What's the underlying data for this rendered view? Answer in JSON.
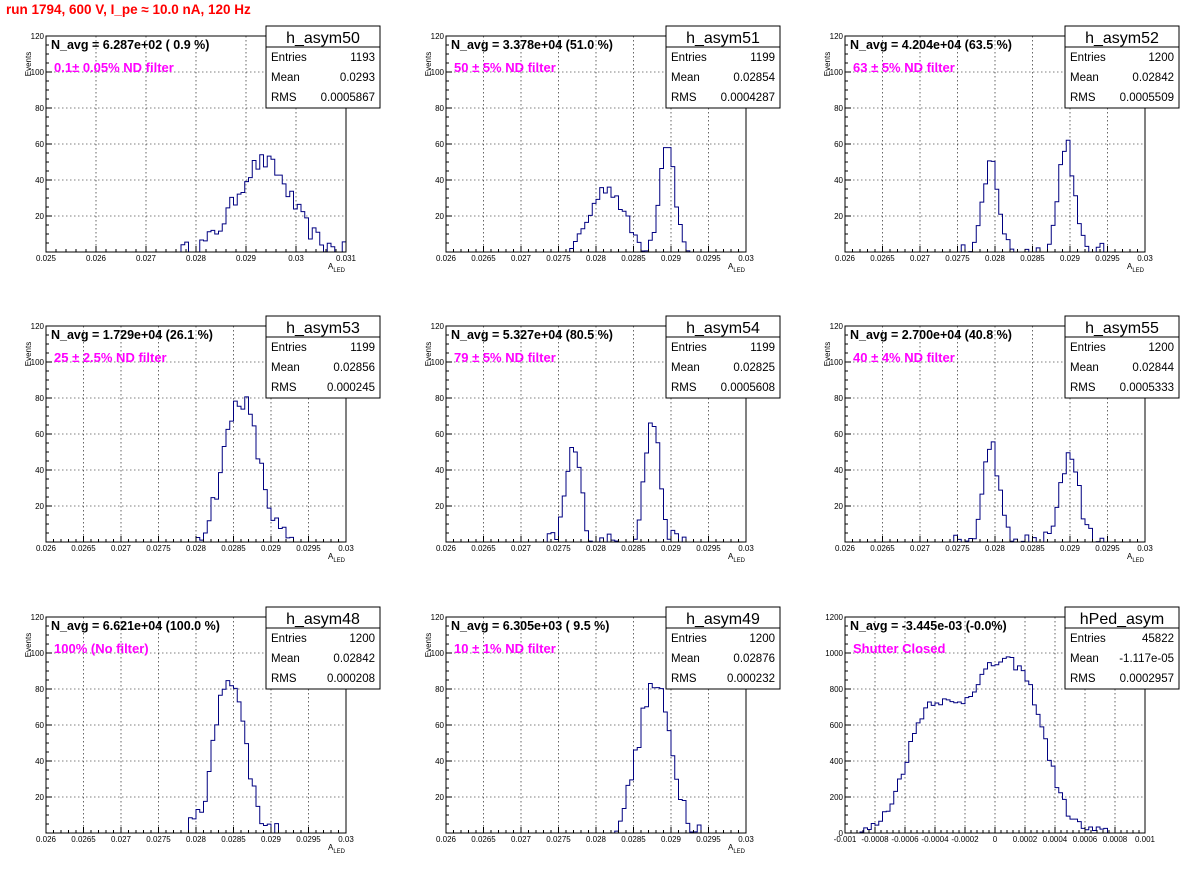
{
  "title": "run 1794,   600 V, I_pe ≈ 10.0 nA, 120 Hz",
  "chart_data": [
    {
      "type": "bar",
      "name": "h_asym50",
      "navg": "N_avg = 6.287e+02 ( 0.9 %)",
      "filter": "0.1± 0.05% ND filter",
      "ylabel": "Events",
      "xlabel": "A",
      "xlabel_sub": "LED",
      "xlim": [
        0.025,
        0.031
      ],
      "ylim": [
        0,
        120
      ],
      "xticks": [
        0.025,
        0.026,
        0.027,
        0.028,
        0.029,
        0.03,
        0.031
      ],
      "xtick_labels": [
        "0.025",
        "0.026",
        "0.027",
        "0.028",
        "0.029",
        "0.03",
        "0.031"
      ],
      "yticks": [
        0,
        20,
        40,
        60,
        80,
        100,
        120
      ],
      "ytick_labels": [
        "",
        "20",
        "40",
        "60",
        "80",
        "100",
        "120"
      ],
      "stats": [
        {
          "key": "Entries",
          "value": "1193"
        },
        {
          "key": "Mean",
          "value": "0.0293"
        },
        {
          "key": "RMS",
          "value": "0.0005867"
        }
      ],
      "peaks": [
        {
          "mu": 0.02935,
          "sigma": 0.00055,
          "amp": 50
        }
      ],
      "noise": 5,
      "xmin_data": 0.0276,
      "xmax_data": 0.031
    },
    {
      "type": "bar",
      "name": "h_asym51",
      "navg": "N_avg = 3.378e+04 (51.0 %)",
      "filter": "50 ± 5% ND filter",
      "ylabel": "Events",
      "xlabel": "A",
      "xlabel_sub": "LED",
      "xlim": [
        0.026,
        0.03
      ],
      "ylim": [
        0,
        120
      ],
      "xticks": [
        0.026,
        0.0265,
        0.027,
        0.0275,
        0.028,
        0.0285,
        0.029,
        0.0295,
        0.03
      ],
      "xtick_labels": [
        "0.026",
        "0.0265",
        "0.027",
        "0.0275",
        "0.028",
        "0.0285",
        "0.029",
        "0.0295",
        "0.03"
      ],
      "yticks": [
        0,
        20,
        40,
        60,
        80,
        100,
        120
      ],
      "ytick_labels": [
        "",
        "20",
        "40",
        "60",
        "80",
        "100",
        "120"
      ],
      "stats": [
        {
          "key": "Entries",
          "value": "1199"
        },
        {
          "key": "Mean",
          "value": "0.02854"
        },
        {
          "key": "RMS",
          "value": "0.0004287"
        }
      ],
      "peaks": [
        {
          "mu": 0.02815,
          "sigma": 0.00022,
          "amp": 36
        },
        {
          "mu": 0.02895,
          "sigma": 0.0001,
          "amp": 62
        }
      ],
      "noise": 4,
      "xmin_data": 0.02765,
      "xmax_data": 0.02925
    },
    {
      "type": "bar",
      "name": "h_asym52",
      "navg": "N_avg = 4.204e+04 (63.5 %)",
      "filter": "63 ± 5% ND filter",
      "ylabel": "Events",
      "xlabel": "A",
      "xlabel_sub": "LED",
      "xlim": [
        0.026,
        0.03
      ],
      "ylim": [
        0,
        120
      ],
      "xticks": [
        0.026,
        0.0265,
        0.027,
        0.0275,
        0.028,
        0.0285,
        0.029,
        0.0295,
        0.03
      ],
      "xtick_labels": [
        "0.026",
        "0.0265",
        "0.027",
        "0.0275",
        "0.028",
        "0.0285",
        "0.029",
        "0.0295",
        "0.03"
      ],
      "yticks": [
        0,
        20,
        40,
        60,
        80,
        100,
        120
      ],
      "ytick_labels": [
        "",
        "20",
        "40",
        "60",
        "80",
        "100",
        "120"
      ],
      "stats": [
        {
          "key": "Entries",
          "value": "1200"
        },
        {
          "key": "Mean",
          "value": "0.02842"
        },
        {
          "key": "RMS",
          "value": "0.0005509"
        }
      ],
      "peaks": [
        {
          "mu": 0.02795,
          "sigma": 0.0001,
          "amp": 50
        },
        {
          "mu": 0.02895,
          "sigma": 0.0001,
          "amp": 62
        }
      ],
      "noise": 5,
      "xmin_data": 0.0275,
      "xmax_data": 0.02945
    },
    {
      "type": "bar",
      "name": "h_asym53",
      "navg": "N_avg = 1.729e+04 (26.1 %)",
      "filter": "25 ± 2.5% ND filter",
      "ylabel": "Events",
      "xlabel": "A",
      "xlabel_sub": "LED",
      "xlim": [
        0.026,
        0.03
      ],
      "ylim": [
        0,
        120
      ],
      "xticks": [
        0.026,
        0.0265,
        0.027,
        0.0275,
        0.028,
        0.0285,
        0.029,
        0.0295,
        0.03
      ],
      "xtick_labels": [
        "0.026",
        "0.0265",
        "0.027",
        "0.0275",
        "0.028",
        "0.0285",
        "0.029",
        "0.0295",
        "0.03"
      ],
      "yticks": [
        0,
        20,
        40,
        60,
        80,
        100,
        120
      ],
      "ytick_labels": [
        "",
        "20",
        "40",
        "60",
        "80",
        "100",
        "120"
      ],
      "stats": [
        {
          "key": "Entries",
          "value": "1199"
        },
        {
          "key": "Mean",
          "value": "0.02856"
        },
        {
          "key": "RMS",
          "value": "0.000245"
        }
      ],
      "peaks": [
        {
          "mu": 0.0286,
          "sigma": 0.00023,
          "amp": 80
        }
      ],
      "noise": 6,
      "xmin_data": 0.02795,
      "xmax_data": 0.0293
    },
    {
      "type": "bar",
      "name": "h_asym54",
      "navg": "N_avg = 5.327e+04 (80.5 %)",
      "filter": "79 ± 5% ND filter",
      "ylabel": "Events",
      "xlabel": "A",
      "xlabel_sub": "LED",
      "xlim": [
        0.026,
        0.03
      ],
      "ylim": [
        0,
        120
      ],
      "xticks": [
        0.026,
        0.0265,
        0.027,
        0.0275,
        0.028,
        0.0285,
        0.029,
        0.0295,
        0.03
      ],
      "xtick_labels": [
        "0.026",
        "0.0265",
        "0.027",
        "0.0275",
        "0.028",
        "0.0285",
        "0.029",
        "0.0295",
        "0.03"
      ],
      "yticks": [
        0,
        20,
        40,
        60,
        80,
        100,
        120
      ],
      "ytick_labels": [
        "",
        "20",
        "40",
        "60",
        "80",
        "100",
        "120"
      ],
      "stats": [
        {
          "key": "Entries",
          "value": "1199"
        },
        {
          "key": "Mean",
          "value": "0.02825"
        },
        {
          "key": "RMS",
          "value": "0.0005608"
        }
      ],
      "peaks": [
        {
          "mu": 0.0277,
          "sigma": 0.0001,
          "amp": 52
        },
        {
          "mu": 0.02875,
          "sigma": 0.0001,
          "amp": 68
        }
      ],
      "noise": 5,
      "xmin_data": 0.02735,
      "xmax_data": 0.0292
    },
    {
      "type": "bar",
      "name": "h_asym55",
      "navg": "N_avg = 2.700e+04 (40.8 %)",
      "filter": "40 ± 4% ND filter",
      "ylabel": "Events",
      "xlabel": "A",
      "xlabel_sub": "LED",
      "xlim": [
        0.026,
        0.03
      ],
      "ylim": [
        0,
        120
      ],
      "xticks": [
        0.026,
        0.0265,
        0.027,
        0.0275,
        0.028,
        0.0285,
        0.029,
        0.0295,
        0.03
      ],
      "xtick_labels": [
        "0.026",
        "0.0265",
        "0.027",
        "0.0275",
        "0.028",
        "0.0285",
        "0.029",
        "0.0295",
        "0.03"
      ],
      "yticks": [
        0,
        20,
        40,
        60,
        80,
        100,
        120
      ],
      "ytick_labels": [
        "",
        "20",
        "40",
        "60",
        "80",
        "100",
        "120"
      ],
      "stats": [
        {
          "key": "Entries",
          "value": "1200"
        },
        {
          "key": "Mean",
          "value": "0.02844"
        },
        {
          "key": "RMS",
          "value": "0.0005333"
        }
      ],
      "peaks": [
        {
          "mu": 0.02795,
          "sigma": 0.0001,
          "amp": 55
        },
        {
          "mu": 0.029,
          "sigma": 0.00012,
          "amp": 50
        }
      ],
      "noise": 5,
      "xmin_data": 0.02745,
      "xmax_data": 0.0295
    },
    {
      "type": "bar",
      "name": "h_asym48",
      "navg": "N_avg = 6.621e+04 (100.0 %)",
      "filter": "100% (No filter)",
      "ylabel": "Events",
      "xlabel": "A",
      "xlabel_sub": "LED",
      "xlim": [
        0.026,
        0.03
      ],
      "ylim": [
        0,
        120
      ],
      "xticks": [
        0.026,
        0.0265,
        0.027,
        0.0275,
        0.028,
        0.0285,
        0.029,
        0.0295,
        0.03
      ],
      "xtick_labels": [
        "0.026",
        "0.0265",
        "0.027",
        "0.0275",
        "0.028",
        "0.0285",
        "0.029",
        "0.0295",
        "0.03"
      ],
      "yticks": [
        0,
        20,
        40,
        60,
        80,
        100,
        120
      ],
      "ytick_labels": [
        "",
        "20",
        "40",
        "60",
        "80",
        "100",
        "120"
      ],
      "stats": [
        {
          "key": "Entries",
          "value": "1200"
        },
        {
          "key": "Mean",
          "value": "0.02842"
        },
        {
          "key": "RMS",
          "value": "0.000208"
        }
      ],
      "peaks": [
        {
          "mu": 0.02845,
          "sigma": 0.0002,
          "amp": 88
        }
      ],
      "noise": 6,
      "xmin_data": 0.0279,
      "xmax_data": 0.0291
    },
    {
      "type": "bar",
      "name": "h_asym49",
      "navg": "N_avg = 6.305e+03 ( 9.5 %)",
      "filter": "10 ± 1% ND filter",
      "ylabel": "Events",
      "xlabel": "A",
      "xlabel_sub": "LED",
      "xlim": [
        0.026,
        0.03
      ],
      "ylim": [
        0,
        120
      ],
      "xticks": [
        0.026,
        0.0265,
        0.027,
        0.0275,
        0.028,
        0.0285,
        0.029,
        0.0295,
        0.03
      ],
      "xtick_labels": [
        "0.026",
        "0.0265",
        "0.027",
        "0.0275",
        "0.028",
        "0.0285",
        "0.029",
        "0.0295",
        "0.03"
      ],
      "yticks": [
        0,
        20,
        40,
        60,
        80,
        100,
        120
      ],
      "ytick_labels": [
        "",
        "20",
        "40",
        "60",
        "80",
        "100",
        "120"
      ],
      "stats": [
        {
          "key": "Entries",
          "value": "1200"
        },
        {
          "key": "Mean",
          "value": "0.02876"
        },
        {
          "key": "RMS",
          "value": "0.000232"
        }
      ],
      "peaks": [
        {
          "mu": 0.02878,
          "sigma": 0.00022,
          "amp": 82
        }
      ],
      "noise": 6,
      "xmin_data": 0.0282,
      "xmax_data": 0.02945
    },
    {
      "type": "bar",
      "name": "hPed_asym",
      "navg": "N_avg = -3.445e-03 (-0.0%)",
      "filter": "Shutter Closed",
      "ylabel": "",
      "xlabel": "",
      "xlabel_sub": "",
      "xlim": [
        -0.001,
        0.001
      ],
      "ylim": [
        0,
        1200
      ],
      "xticks": [
        -0.001,
        -0.0008,
        -0.0006,
        -0.0004,
        -0.0002,
        0,
        0.0002,
        0.0004,
        0.0006,
        0.0008,
        0.001
      ],
      "xtick_labels": [
        "-0.001",
        "-0.0008",
        "-0.0006",
        "-0.0004",
        "-0.0002",
        "0",
        "0.0002",
        "0.0004",
        "0.0006",
        "0.0008",
        "0.001"
      ],
      "yticks": [
        0,
        200,
        400,
        600,
        800,
        1000,
        1200
      ],
      "ytick_labels": [
        "0",
        "200",
        "400",
        "600",
        "800",
        "1000",
        "1200"
      ],
      "stats": [
        {
          "key": "Entries",
          "value": "45822"
        },
        {
          "key": "Mean",
          "value": "-1.117e-05"
        },
        {
          "key": "RMS",
          "value": "0.0002957"
        }
      ],
      "peaks": [
        {
          "mu": -0.00045,
          "sigma": 0.00015,
          "amp": 600
        },
        {
          "mu": 0.0,
          "sigma": 0.00022,
          "amp": 900
        },
        {
          "mu": 0.00025,
          "sigma": 0.00012,
          "amp": 300
        }
      ],
      "noise": 30,
      "xmin_data": -0.00092,
      "xmax_data": 0.0008
    }
  ]
}
